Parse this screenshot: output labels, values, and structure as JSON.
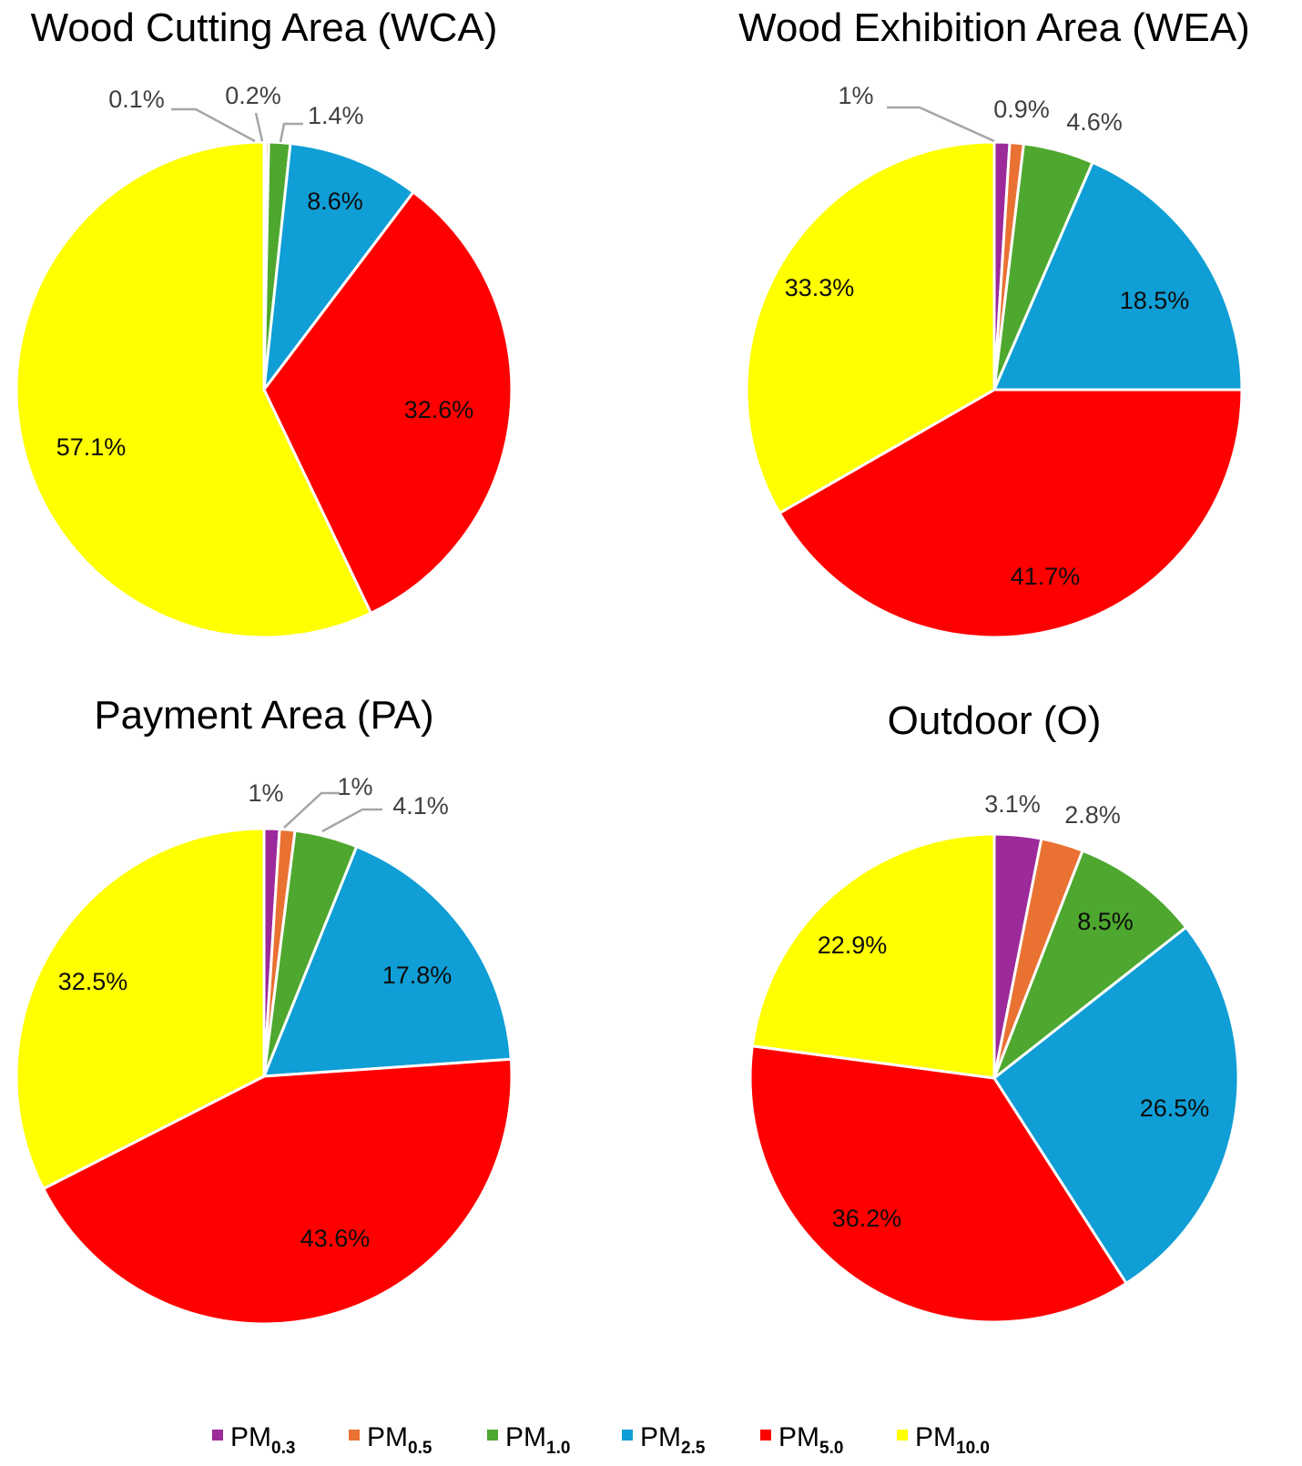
{
  "chart_data": [
    {
      "type": "pie",
      "title": "Wood Cutting Area (WCA)",
      "categories": [
        "PM0.3",
        "PM0.5",
        "PM1.0",
        "PM2.5",
        "PM5.0",
        "PM10.0"
      ],
      "values": [
        0.1,
        0.2,
        1.4,
        8.6,
        32.6,
        57.1
      ],
      "labels": [
        "0.1%",
        "0.2%",
        "1.4%",
        "8.6%",
        "32.6%",
        "57.1%"
      ]
    },
    {
      "type": "pie",
      "title": "Wood Exhibition Area (WEA)",
      "categories": [
        "PM0.3",
        "PM0.5",
        "PM1.0",
        "PM2.5",
        "PM5.0",
        "PM10.0"
      ],
      "values": [
        1,
        0.9,
        4.6,
        18.5,
        41.7,
        33.3
      ],
      "labels": [
        "1%",
        "0.9%",
        "4.6%",
        "18.5%",
        "41.7%",
        "33.3%"
      ]
    },
    {
      "type": "pie",
      "title": "Payment Area (PA)",
      "categories": [
        "PM0.3",
        "PM0.5",
        "PM1.0",
        "PM2.5",
        "PM5.0",
        "PM10.0"
      ],
      "values": [
        1,
        1,
        4.1,
        17.8,
        43.6,
        32.5
      ],
      "labels": [
        "1%",
        "1%",
        "4.1%",
        "17.8%",
        "43.6%",
        "32.5%"
      ]
    },
    {
      "type": "pie",
      "title": "Outdoor (O)",
      "categories": [
        "PM0.3",
        "PM0.5",
        "PM1.0",
        "PM2.5",
        "PM5.0",
        "PM10.0"
      ],
      "values": [
        3.1,
        2.8,
        8.5,
        26.5,
        36.2,
        22.9
      ],
      "labels": [
        "3.1%",
        "2.8%",
        "8.5%",
        "26.5%",
        "36.2%",
        "22.9%"
      ]
    }
  ],
  "legend": {
    "position": "bottom",
    "items": [
      {
        "base": "PM",
        "sub": "0.3",
        "color": "#9C2A9A"
      },
      {
        "base": "PM",
        "sub": "0.5",
        "color": "#E97132"
      },
      {
        "base": "PM",
        "sub": "1.0",
        "color": "#4EA72E"
      },
      {
        "base": "PM",
        "sub": "2.5",
        "color": "#0F9ED5"
      },
      {
        "base": "PM",
        "sub": "5.0",
        "color": "#FF0000"
      },
      {
        "base": "PM",
        "sub": "10.0",
        "color": "#FFFF00"
      }
    ]
  }
}
